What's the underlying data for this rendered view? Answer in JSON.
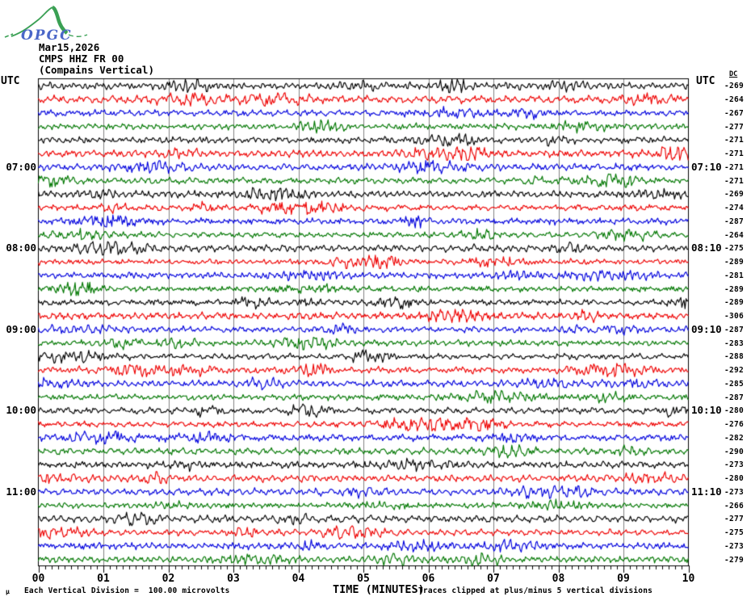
{
  "logo": {
    "text": "OPGC",
    "green": "#3aa054",
    "blue": "#4a66c8"
  },
  "header": {
    "date": "Mar15,2026",
    "station": "CMPS HHZ FR 00",
    "component": "(Compains Vertical)"
  },
  "axis": {
    "utc_left": "UTC",
    "utc_right": "UTC",
    "dc_header": "DC",
    "x_title": "TIME (MINUTES)",
    "x_labels": [
      "00",
      "01",
      "02",
      "03",
      "04",
      "05",
      "06",
      "07",
      "08",
      "09",
      "10"
    ]
  },
  "footer": {
    "scale_mark": "µ",
    "left": "Each Vertical Division =  100.00 microvolts",
    "right": "Traces clipped at plus/minus 5 vertical divisions"
  },
  "colors": {
    "black": "#000000",
    "red": "#ee0000",
    "blue": "#0000dd",
    "green": "#007700",
    "grid": "#808080",
    "border": "#000000"
  },
  "chart_data": {
    "type": "line",
    "title": "CMPS HHZ FR 00 (Compains Vertical) Mar15,2026 helicorder",
    "xlabel": "TIME (MINUTES)",
    "x_range_minutes": [
      0,
      10
    ],
    "minutes_per_row": 10,
    "rows_count": 36,
    "grid": "vertical lines at every minute",
    "legend": "trace colors cycle black, red, blue, green; one row per 10 minutes",
    "rows": [
      {
        "color": "black",
        "dc": -269,
        "left": "",
        "right": ""
      },
      {
        "color": "red",
        "dc": -264,
        "left": "",
        "right": ""
      },
      {
        "color": "blue",
        "dc": -267,
        "left": "",
        "right": ""
      },
      {
        "color": "green",
        "dc": -277,
        "left": "",
        "right": ""
      },
      {
        "color": "black",
        "dc": -271,
        "left": "",
        "right": ""
      },
      {
        "color": "red",
        "dc": -271,
        "left": "",
        "right": ""
      },
      {
        "color": "blue",
        "dc": -271,
        "left": "07:00",
        "right": "07:10"
      },
      {
        "color": "green",
        "dc": -271,
        "left": "",
        "right": ""
      },
      {
        "color": "black",
        "dc": -269,
        "left": "",
        "right": ""
      },
      {
        "color": "red",
        "dc": -274,
        "left": "",
        "right": ""
      },
      {
        "color": "blue",
        "dc": -287,
        "left": "",
        "right": ""
      },
      {
        "color": "green",
        "dc": -264,
        "left": "",
        "right": ""
      },
      {
        "color": "black",
        "dc": -275,
        "left": "08:00",
        "right": "08:10"
      },
      {
        "color": "red",
        "dc": -289,
        "left": "",
        "right": ""
      },
      {
        "color": "blue",
        "dc": -281,
        "left": "",
        "right": ""
      },
      {
        "color": "green",
        "dc": -289,
        "left": "",
        "right": ""
      },
      {
        "color": "black",
        "dc": -289,
        "left": "",
        "right": ""
      },
      {
        "color": "red",
        "dc": -306,
        "left": "",
        "right": ""
      },
      {
        "color": "blue",
        "dc": -287,
        "left": "09:00",
        "right": "09:10"
      },
      {
        "color": "green",
        "dc": -283,
        "left": "",
        "right": ""
      },
      {
        "color": "black",
        "dc": -288,
        "left": "",
        "right": ""
      },
      {
        "color": "red",
        "dc": -292,
        "left": "",
        "right": ""
      },
      {
        "color": "blue",
        "dc": -285,
        "left": "",
        "right": ""
      },
      {
        "color": "green",
        "dc": -287,
        "left": "",
        "right": ""
      },
      {
        "color": "black",
        "dc": -280,
        "left": "10:00",
        "right": "10:10"
      },
      {
        "color": "red",
        "dc": -276,
        "left": "",
        "right": ""
      },
      {
        "color": "blue",
        "dc": -282,
        "left": "",
        "right": ""
      },
      {
        "color": "green",
        "dc": -290,
        "left": "",
        "right": ""
      },
      {
        "color": "black",
        "dc": -273,
        "left": "",
        "right": ""
      },
      {
        "color": "red",
        "dc": -280,
        "left": "",
        "right": ""
      },
      {
        "color": "blue",
        "dc": -273,
        "left": "11:00",
        "right": "11:10"
      },
      {
        "color": "green",
        "dc": -266,
        "left": "",
        "right": ""
      },
      {
        "color": "black",
        "dc": -277,
        "left": "",
        "right": ""
      },
      {
        "color": "red",
        "dc": -275,
        "left": "",
        "right": ""
      },
      {
        "color": "blue",
        "dc": -273,
        "left": "",
        "right": ""
      },
      {
        "color": "green",
        "dc": -279,
        "left": "",
        "right": ""
      }
    ]
  }
}
